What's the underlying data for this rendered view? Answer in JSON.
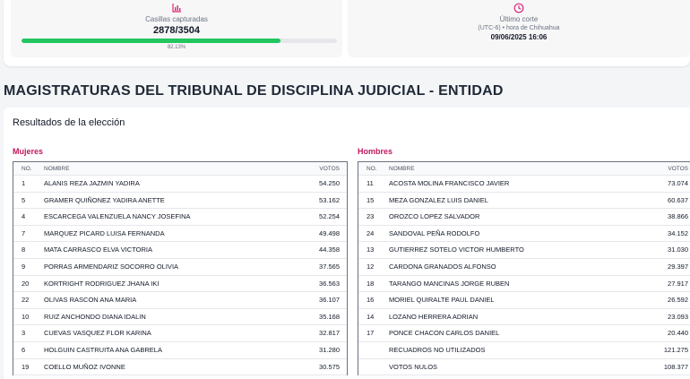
{
  "summary": {
    "captured_label": "Casillas capturadas",
    "captured_value": "2878/3504",
    "progress_percent": "82.13%",
    "progress_fraction": 0.8213,
    "cut_label": "Último corte",
    "cut_timezone": "(UTC-6) • hora de Chihuahua",
    "cut_datetime": "09/06/2025 16:06"
  },
  "section_title": "MAGISTRATURAS DEL TRIBUNAL DE DISCIPLINA JUDICIAL - ENTIDAD",
  "results_title": "Resultados de la elección",
  "columns": {
    "no": "NO.",
    "name": "NOMBRE",
    "votes": "VOTOS"
  },
  "women": {
    "label": "Mujeres",
    "rows": [
      {
        "no": "1",
        "name": "ALANIS REZA JAZMIN YADIRA",
        "votes": "54.250"
      },
      {
        "no": "5",
        "name": "GRAMER QUIÑONEZ YADIRA ANETTE",
        "votes": "53.162"
      },
      {
        "no": "4",
        "name": "ESCARCEGA VALENZUELA NANCY JOSEFINA",
        "votes": "52.254"
      },
      {
        "no": "7",
        "name": "MARQUEZ PICARD LUISA FERNANDA",
        "votes": "49.498"
      },
      {
        "no": "8",
        "name": "MATA CARRASCO ELVA VICTORIA",
        "votes": "44.358"
      },
      {
        "no": "9",
        "name": "PORRAS ARMENDARIZ SOCORRO OLIVIA",
        "votes": "37.565"
      },
      {
        "no": "20",
        "name": "KORTRIGHT RODRIGUEZ JHANA IKI",
        "votes": "36.563"
      },
      {
        "no": "22",
        "name": "OLIVAS RASCON ANA MARIA",
        "votes": "36.107"
      },
      {
        "no": "10",
        "name": "RUIZ ANCHONDO DIANA IDALIN",
        "votes": "35.168"
      },
      {
        "no": "3",
        "name": "CUEVAS VASQUEZ FLOR KARINA",
        "votes": "32.817"
      },
      {
        "no": "6",
        "name": "HOLGUIN CASTRUITA ANA GABRELA",
        "votes": "31.280"
      },
      {
        "no": "19",
        "name": "COELLO MUÑOZ IVONNE",
        "votes": "30.575"
      }
    ]
  },
  "men": {
    "label": "Hombres",
    "rows": [
      {
        "no": "11",
        "name": "ACOSTA MOLINA FRANCISCO JAVIER",
        "votes": "73.074"
      },
      {
        "no": "15",
        "name": "MEZA GONZALEZ LUIS DANIEL",
        "votes": "60.637"
      },
      {
        "no": "23",
        "name": "OROZCO LOPEZ SALVADOR",
        "votes": "38.866"
      },
      {
        "no": "24",
        "name": "SANDOVAL PEÑA RODOLFO",
        "votes": "34.152"
      },
      {
        "no": "13",
        "name": "GUTIERREZ SOTELO VICTOR HUMBERTO",
        "votes": "31.030"
      },
      {
        "no": "12",
        "name": "CARDONA GRANADOS ALFONSO",
        "votes": "29.397"
      },
      {
        "no": "18",
        "name": "TARANGO MANCINAS JORGE RUBEN",
        "votes": "27.917"
      },
      {
        "no": "16",
        "name": "MORIEL QUIRALTE PAUL DANIEL",
        "votes": "26.592"
      },
      {
        "no": "14",
        "name": "LOZANO HERRERA ADRIAN",
        "votes": "23.093"
      },
      {
        "no": "17",
        "name": "PONCE CHACON CARLOS DANIEL",
        "votes": "20.440"
      },
      {
        "no": "",
        "name": "RECUADROS NO UTILIZADOS",
        "votes": "121.275"
      },
      {
        "no": "",
        "name": "VOTOS NULOS",
        "votes": "108.377"
      }
    ]
  },
  "colors": {
    "accent": "#be185d",
    "progress": "#22c55e",
    "icon": "#db2777"
  },
  "icons": {
    "chart": "bar-chart-icon",
    "clock": "clock-icon"
  }
}
